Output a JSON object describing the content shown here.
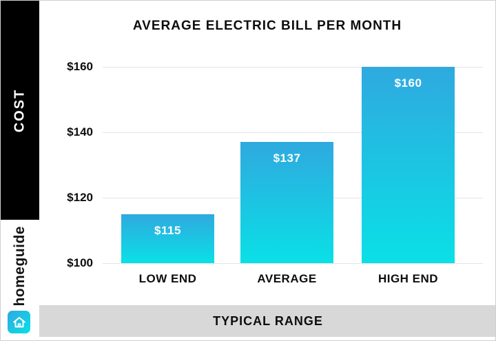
{
  "sidebar": {
    "cost_label": "COST",
    "brand": "homeguide"
  },
  "footer": {
    "label": "TYPICAL RANGE"
  },
  "chart_data": {
    "type": "bar",
    "title": "AVERAGE ELECTRIC BILL PER MONTH",
    "categories": [
      "LOW END",
      "AVERAGE",
      "HIGH END"
    ],
    "values": [
      115,
      137,
      160
    ],
    "bar_labels": [
      "$115",
      "$137",
      "$160"
    ],
    "ylabel": "COST",
    "xlabel": "TYPICAL RANGE",
    "ylim": [
      100,
      160
    ],
    "yticks": [
      160,
      140,
      120,
      100
    ],
    "ytick_labels": [
      "$160",
      "$140",
      "$120",
      "$100"
    ],
    "grid": true,
    "legend": false,
    "colors": {
      "bar_gradient_top": "#2fa9df",
      "bar_gradient_bottom": "#0ae0e6",
      "sidebar_bg": "#000000",
      "footer_bg": "#d8d8d8",
      "logo_gradient_top": "#2fa9df",
      "logo_gradient_bottom": "#0ae0e6"
    }
  }
}
